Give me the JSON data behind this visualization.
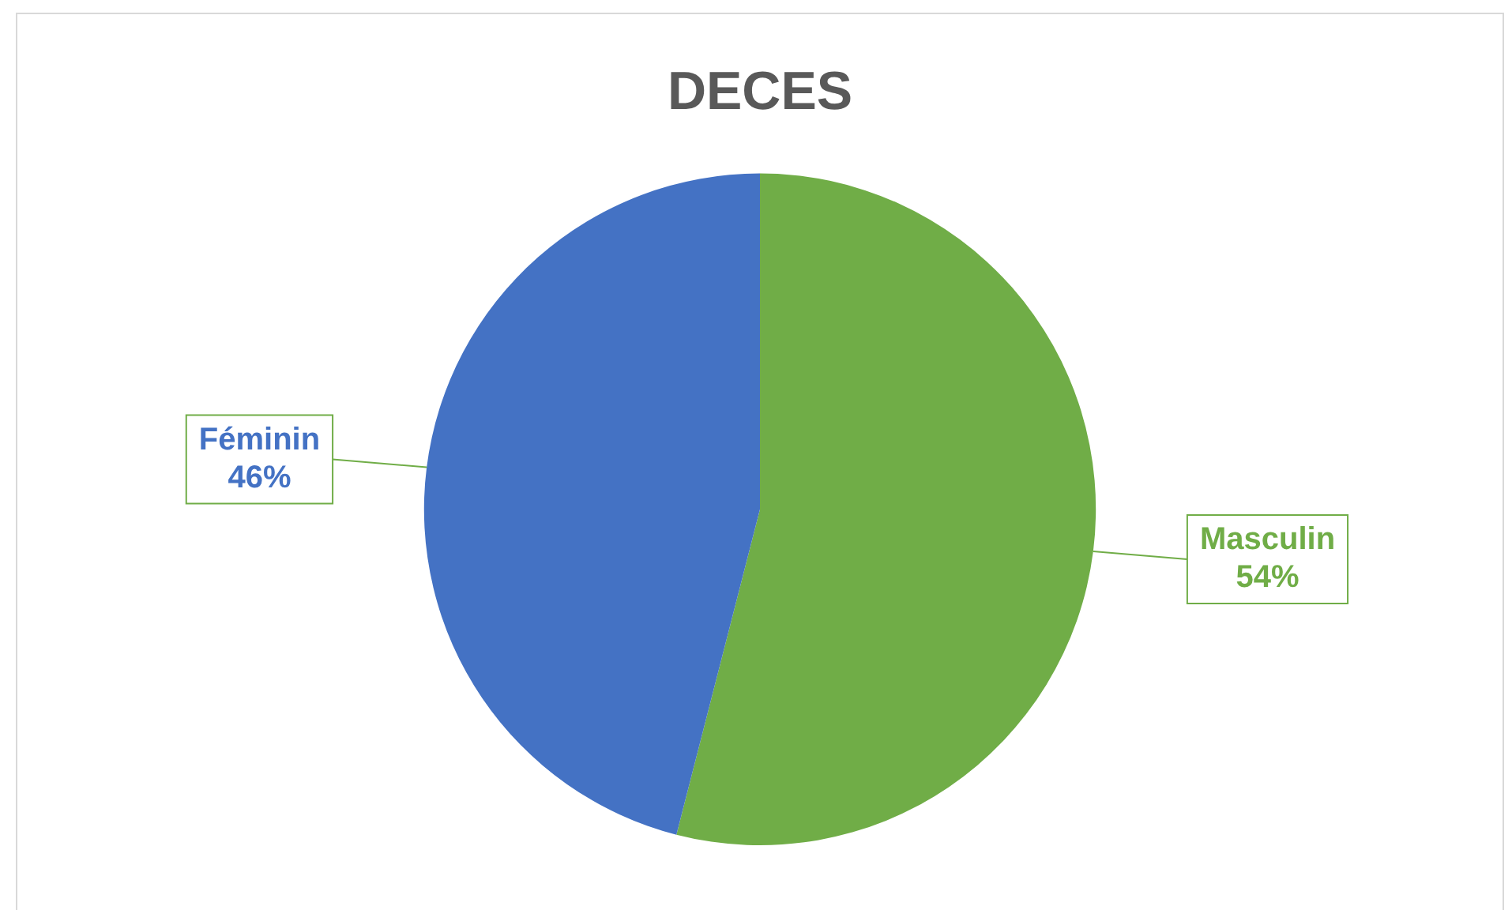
{
  "chart_data": {
    "type": "pie",
    "title": "DECES",
    "categories": [
      "Masculin",
      "Féminin"
    ],
    "values": [
      54,
      46
    ],
    "value_labels": [
      "54%",
      "46%"
    ],
    "colors": [
      "#70ad47",
      "#4472c4"
    ],
    "legend": false
  }
}
